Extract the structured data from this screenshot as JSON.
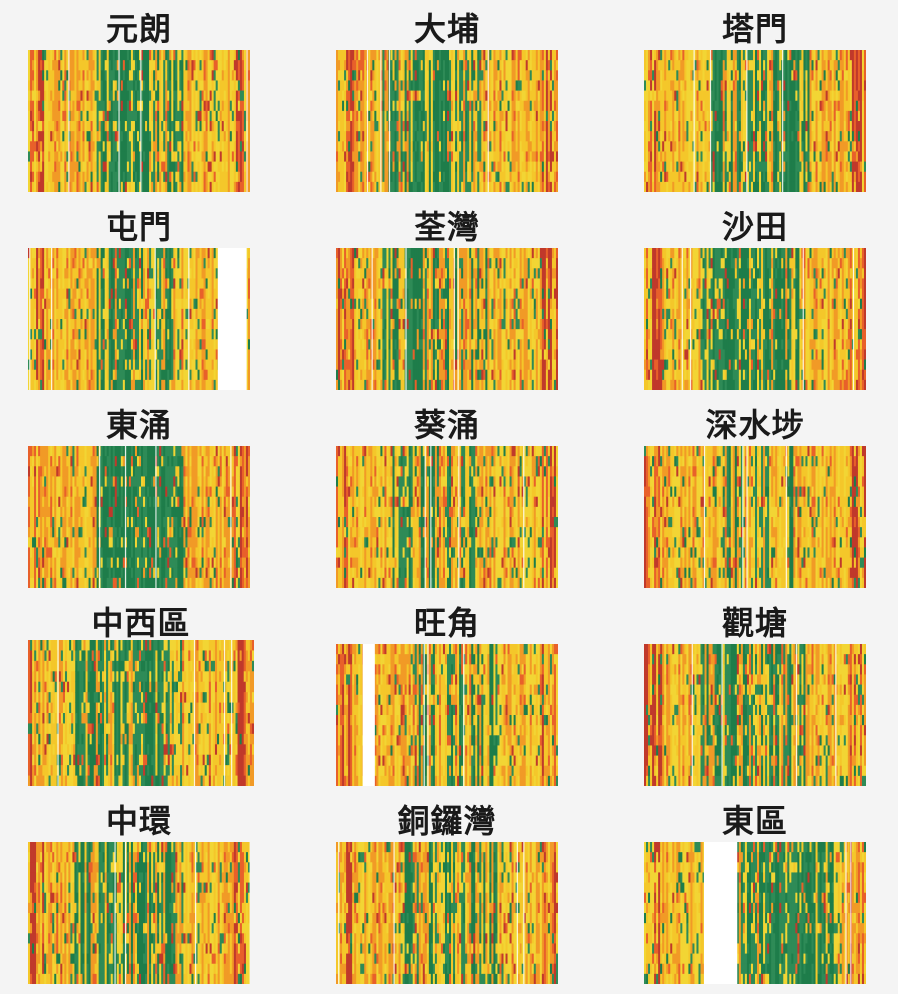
{
  "colors": {
    "background": "#f4f4f4",
    "scale": [
      "#c0392b",
      "#e8602a",
      "#f19a26",
      "#f4c72a",
      "#f2d534",
      "#2e8b57",
      "#1e7d4a"
    ],
    "missing": "#ffffff"
  },
  "chart_data": [
    {
      "type": "heatmap",
      "title": "元朗",
      "missing_spans": []
    },
    {
      "type": "heatmap",
      "title": "大埔",
      "missing_spans": []
    },
    {
      "type": "heatmap",
      "title": "塔門",
      "missing_spans": []
    },
    {
      "type": "heatmap",
      "title": "屯門",
      "missing_spans": [
        [
          0.855,
          0.985
        ]
      ]
    },
    {
      "type": "heatmap",
      "title": "荃灣",
      "missing_spans": []
    },
    {
      "type": "heatmap",
      "title": "沙田",
      "missing_spans": []
    },
    {
      "type": "heatmap",
      "title": "東涌",
      "missing_spans": []
    },
    {
      "type": "heatmap",
      "title": "葵涌",
      "missing_spans": []
    },
    {
      "type": "heatmap",
      "title": "深水埗",
      "missing_spans": []
    },
    {
      "type": "heatmap",
      "title": "中西區",
      "missing_spans": []
    },
    {
      "type": "heatmap",
      "title": "旺角",
      "missing_spans": [
        [
          0.12,
          0.175
        ]
      ]
    },
    {
      "type": "heatmap",
      "title": "觀塘",
      "missing_spans": []
    },
    {
      "type": "heatmap",
      "title": "中環",
      "missing_spans": []
    },
    {
      "type": "heatmap",
      "title": "銅鑼灣",
      "missing_spans": []
    },
    {
      "type": "heatmap",
      "title": "東區",
      "missing_spans": [
        [
          0.27,
          0.42
        ]
      ]
    }
  ]
}
